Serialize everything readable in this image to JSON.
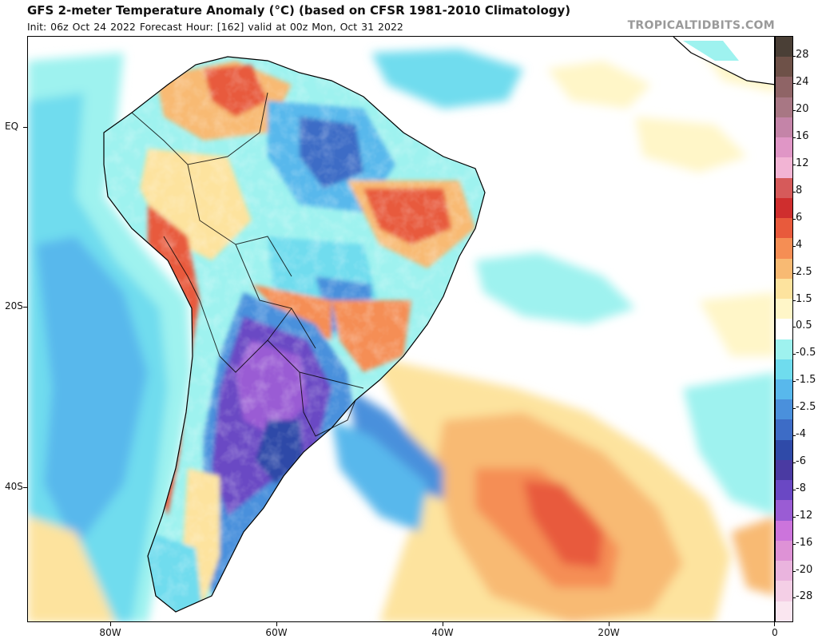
{
  "header": {
    "title": "GFS 2-meter Temperature Anomaly (°C) (based on CFSR 1981-2010 Climatology)",
    "subtitle": "Init: 06z Oct 24 2022   Forecast Hour: [162]   valid at 00z Mon, Oct 31 2022",
    "credit": "TROPICALTIDBITS.COM"
  },
  "map": {
    "lat_labels": [
      "EQ",
      "20S",
      "40S"
    ],
    "lat_values": [
      0,
      -20,
      -40
    ],
    "lon_labels": [
      "80W",
      "60W",
      "40W",
      "20W",
      "0"
    ],
    "lon_values": [
      -80,
      -60,
      -40,
      -20,
      0
    ]
  },
  "colorbar": {
    "labels": [
      "28",
      "24",
      "20",
      "16",
      "12",
      "8",
      "6",
      "4",
      "2.5",
      "1.5",
      "0.5",
      "-0.5",
      "-1.5",
      "-2.5",
      "-4",
      "-6",
      "-8",
      "-12",
      "-16",
      "-20",
      "-28"
    ],
    "colors": [
      "#4a3f36",
      "#6e5148",
      "#8f6466",
      "#a87784",
      "#c484a8",
      "#e096c6",
      "#f2b4d4",
      "#d65a5a",
      "#cf2e2e",
      "#e85a3c",
      "#f58e54",
      "#f8ba73",
      "#fde39e",
      "#fff6c8",
      "#ffffff",
      "#9ef2ef",
      "#6fdcee",
      "#58b8ec",
      "#4a90dc",
      "#3d6cc6",
      "#2f4aa8",
      "#4a3aa2",
      "#6a48c4",
      "#9a5cd4",
      "#cc74dc",
      "#de92d6",
      "#eab4de",
      "#f4cfe6",
      "#fae6f0"
    ]
  }
}
